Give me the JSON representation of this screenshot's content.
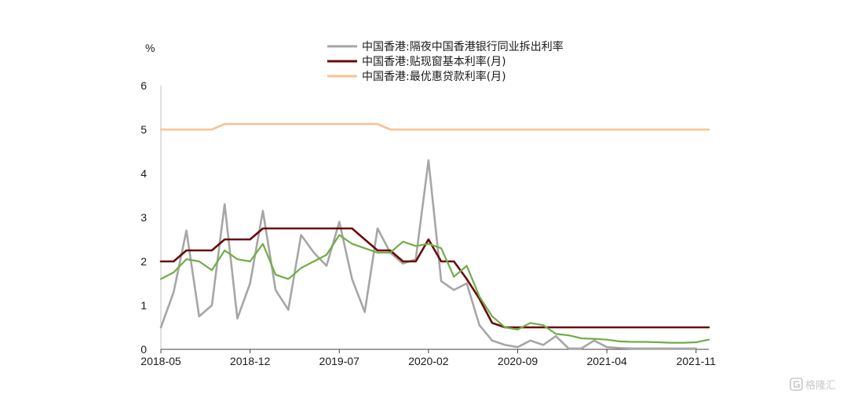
{
  "chart_data": {
    "type": "line",
    "unit_label": "%",
    "ylim": [
      0,
      6
    ],
    "yticks": [
      0,
      1,
      2,
      3,
      4,
      5,
      6
    ],
    "xlim": [
      "2018-05",
      "2021-12"
    ],
    "xticks": [
      "2018-05",
      "2018-12",
      "2019-07",
      "2020-02",
      "2020-09",
      "2021-04",
      "2021-11"
    ],
    "grid": false,
    "legend_position": "top",
    "series": [
      {
        "name": "中国香港:隔夜中国香港银行同业拆出利率",
        "color": "#a6a6a6",
        "points": [
          [
            "2018-05",
            0.5
          ],
          [
            "2018-06",
            1.3
          ],
          [
            "2018-07",
            2.7
          ],
          [
            "2018-08",
            0.75
          ],
          [
            "2018-09",
            1.0
          ],
          [
            "2018-10",
            3.3
          ],
          [
            "2018-11",
            0.7
          ],
          [
            "2018-12",
            1.5
          ],
          [
            "2019-01",
            3.15
          ],
          [
            "2019-02",
            1.35
          ],
          [
            "2019-03",
            0.9
          ],
          [
            "2019-04",
            2.6
          ],
          [
            "2019-05",
            2.2
          ],
          [
            "2019-06",
            1.9
          ],
          [
            "2019-07",
            2.9
          ],
          [
            "2019-08",
            1.6
          ],
          [
            "2019-09",
            0.85
          ],
          [
            "2019-10",
            2.75
          ],
          [
            "2019-11",
            2.2
          ],
          [
            "2019-12",
            1.95
          ],
          [
            "2020-01",
            2.05
          ],
          [
            "2020-02",
            4.3
          ],
          [
            "2020-03",
            1.55
          ],
          [
            "2020-04",
            1.35
          ],
          [
            "2020-05",
            1.5
          ],
          [
            "2020-06",
            0.55
          ],
          [
            "2020-07",
            0.2
          ],
          [
            "2020-08",
            0.1
          ],
          [
            "2020-09",
            0.05
          ],
          [
            "2020-10",
            0.2
          ],
          [
            "2020-11",
            0.1
          ],
          [
            "2020-12",
            0.3
          ],
          [
            "2021-01",
            0.02
          ],
          [
            "2021-02",
            0.02
          ],
          [
            "2021-03",
            0.2
          ],
          [
            "2021-04",
            0.05
          ],
          [
            "2021-05",
            0.03
          ],
          [
            "2021-06",
            0.02
          ],
          [
            "2021-07",
            0.02
          ],
          [
            "2021-08",
            0.02
          ],
          [
            "2021-09",
            0.02
          ],
          [
            "2021-10",
            0.02
          ],
          [
            "2021-11",
            0.02
          ]
        ]
      },
      {
        "name": "中国香港:贴现窗基本利率(月)",
        "color": "#6b0a0a",
        "points": [
          [
            "2018-05",
            2.0
          ],
          [
            "2018-06",
            2.0
          ],
          [
            "2018-07",
            2.25
          ],
          [
            "2018-08",
            2.25
          ],
          [
            "2018-09",
            2.25
          ],
          [
            "2018-10",
            2.5
          ],
          [
            "2018-11",
            2.5
          ],
          [
            "2018-12",
            2.5
          ],
          [
            "2019-01",
            2.75
          ],
          [
            "2019-02",
            2.75
          ],
          [
            "2019-03",
            2.75
          ],
          [
            "2019-04",
            2.75
          ],
          [
            "2019-05",
            2.75
          ],
          [
            "2019-06",
            2.75
          ],
          [
            "2019-07",
            2.75
          ],
          [
            "2019-08",
            2.75
          ],
          [
            "2019-09",
            2.5
          ],
          [
            "2019-10",
            2.25
          ],
          [
            "2019-11",
            2.25
          ],
          [
            "2019-12",
            2.0
          ],
          [
            "2020-01",
            2.0
          ],
          [
            "2020-02",
            2.5
          ],
          [
            "2020-03",
            2.0
          ],
          [
            "2020-04",
            2.0
          ],
          [
            "2020-05",
            1.6
          ],
          [
            "2020-06",
            1.15
          ],
          [
            "2020-07",
            0.6
          ],
          [
            "2020-08",
            0.5
          ],
          [
            "2020-09",
            0.5
          ],
          [
            "2020-10",
            0.5
          ],
          [
            "2020-11",
            0.5
          ],
          [
            "2020-12",
            0.5
          ],
          [
            "2021-01",
            0.5
          ],
          [
            "2021-02",
            0.5
          ],
          [
            "2021-03",
            0.5
          ],
          [
            "2021-04",
            0.5
          ],
          [
            "2021-05",
            0.5
          ],
          [
            "2021-06",
            0.5
          ],
          [
            "2021-07",
            0.5
          ],
          [
            "2021-08",
            0.5
          ],
          [
            "2021-09",
            0.5
          ],
          [
            "2021-10",
            0.5
          ],
          [
            "2021-11",
            0.5
          ],
          [
            "2021-12",
            0.5
          ]
        ]
      },
      {
        "name": "中国香港:最优惠贷款利率(月)",
        "color": "#fac090",
        "points": [
          [
            "2018-05",
            5.0
          ],
          [
            "2018-06",
            5.0
          ],
          [
            "2018-07",
            5.0
          ],
          [
            "2018-08",
            5.0
          ],
          [
            "2018-09",
            5.0
          ],
          [
            "2018-10",
            5.125
          ],
          [
            "2018-11",
            5.125
          ],
          [
            "2018-12",
            5.125
          ],
          [
            "2019-01",
            5.125
          ],
          [
            "2019-02",
            5.125
          ],
          [
            "2019-03",
            5.125
          ],
          [
            "2019-04",
            5.125
          ],
          [
            "2019-05",
            5.125
          ],
          [
            "2019-06",
            5.125
          ],
          [
            "2019-07",
            5.125
          ],
          [
            "2019-08",
            5.125
          ],
          [
            "2019-09",
            5.125
          ],
          [
            "2019-10",
            5.125
          ],
          [
            "2019-11",
            5.0
          ],
          [
            "2019-12",
            5.0
          ],
          [
            "2020-01",
            5.0
          ],
          [
            "2020-02",
            5.0
          ],
          [
            "2020-03",
            5.0
          ],
          [
            "2020-04",
            5.0
          ],
          [
            "2020-05",
            5.0
          ],
          [
            "2020-06",
            5.0
          ],
          [
            "2020-07",
            5.0
          ],
          [
            "2020-08",
            5.0
          ],
          [
            "2020-09",
            5.0
          ],
          [
            "2020-10",
            5.0
          ],
          [
            "2020-11",
            5.0
          ],
          [
            "2020-12",
            5.0
          ],
          [
            "2021-01",
            5.0
          ],
          [
            "2021-02",
            5.0
          ],
          [
            "2021-03",
            5.0
          ],
          [
            "2021-04",
            5.0
          ],
          [
            "2021-05",
            5.0
          ],
          [
            "2021-06",
            5.0
          ],
          [
            "2021-07",
            5.0
          ],
          [
            "2021-08",
            5.0
          ],
          [
            "2021-09",
            5.0
          ],
          [
            "2021-10",
            5.0
          ],
          [
            "2021-11",
            5.0
          ],
          [
            "2021-12",
            5.0
          ]
        ]
      },
      {
        "name": "",
        "color": "#70ad47",
        "legend": false,
        "points": [
          [
            "2018-05",
            1.6
          ],
          [
            "2018-06",
            1.75
          ],
          [
            "2018-07",
            2.05
          ],
          [
            "2018-08",
            2.0
          ],
          [
            "2018-09",
            1.8
          ],
          [
            "2018-10",
            2.25
          ],
          [
            "2018-11",
            2.05
          ],
          [
            "2018-12",
            2.0
          ],
          [
            "2019-01",
            2.4
          ],
          [
            "2019-02",
            1.7
          ],
          [
            "2019-03",
            1.6
          ],
          [
            "2019-04",
            1.85
          ],
          [
            "2019-05",
            2.0
          ],
          [
            "2019-06",
            2.15
          ],
          [
            "2019-07",
            2.6
          ],
          [
            "2019-08",
            2.4
          ],
          [
            "2019-09",
            2.3
          ],
          [
            "2019-10",
            2.2
          ],
          [
            "2019-11",
            2.2
          ],
          [
            "2019-12",
            2.45
          ],
          [
            "2020-01",
            2.35
          ],
          [
            "2020-02",
            2.4
          ],
          [
            "2020-03",
            2.3
          ],
          [
            "2020-04",
            1.65
          ],
          [
            "2020-05",
            1.9
          ],
          [
            "2020-06",
            1.2
          ],
          [
            "2020-07",
            0.75
          ],
          [
            "2020-08",
            0.5
          ],
          [
            "2020-09",
            0.45
          ],
          [
            "2020-10",
            0.6
          ],
          [
            "2020-11",
            0.55
          ],
          [
            "2020-12",
            0.35
          ],
          [
            "2021-01",
            0.32
          ],
          [
            "2021-02",
            0.25
          ],
          [
            "2021-03",
            0.24
          ],
          [
            "2021-04",
            0.22
          ],
          [
            "2021-05",
            0.18
          ],
          [
            "2021-06",
            0.17
          ],
          [
            "2021-07",
            0.17
          ],
          [
            "2021-08",
            0.16
          ],
          [
            "2021-09",
            0.15
          ],
          [
            "2021-10",
            0.15
          ],
          [
            "2021-11",
            0.16
          ],
          [
            "2021-12",
            0.22
          ]
        ]
      }
    ]
  },
  "watermark": {
    "text": "格隆汇",
    "logo_icon": "g-logo-icon"
  }
}
